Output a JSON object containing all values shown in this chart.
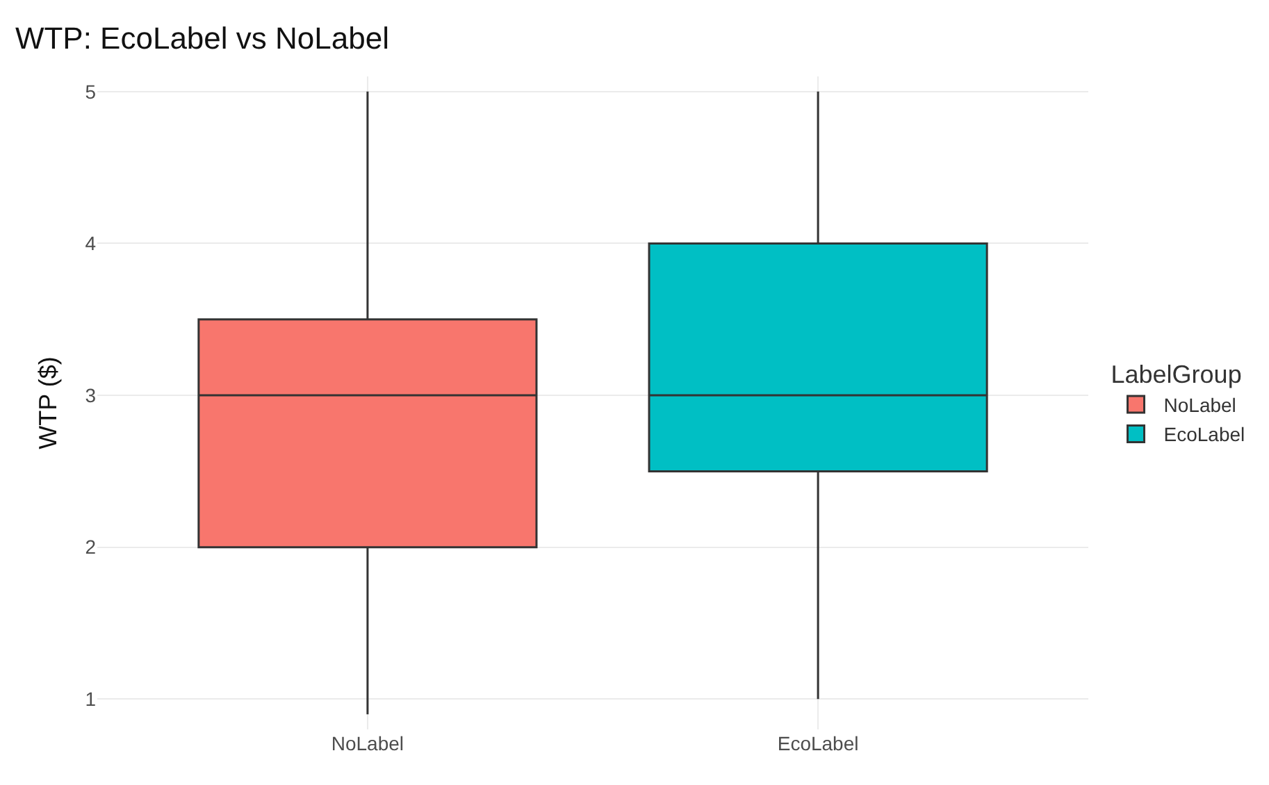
{
  "chart_data": {
    "type": "box",
    "title": "WTP: EcoLabel vs NoLabel",
    "ylabel": "WTP ($)",
    "legend_title": "LabelGroup",
    "categories": [
      "NoLabel",
      "EcoLabel"
    ],
    "series": [
      {
        "name": "NoLabel",
        "color": "#f8766d",
        "boxes": [
          {
            "low": 0.9,
            "q1": 2,
            "median": 3,
            "q3": 3.5,
            "high": 5
          },
          null
        ]
      },
      {
        "name": "EcoLabel",
        "color": "#00bfc4",
        "boxes": [
          null,
          {
            "low": 1,
            "q1": 2.5,
            "median": 3,
            "q3": 4,
            "high": 5
          }
        ]
      }
    ],
    "ylim": [
      0.8,
      5.1
    ],
    "yticks": [
      1,
      2,
      3,
      4,
      5
    ],
    "grid": true,
    "legend": "right"
  }
}
